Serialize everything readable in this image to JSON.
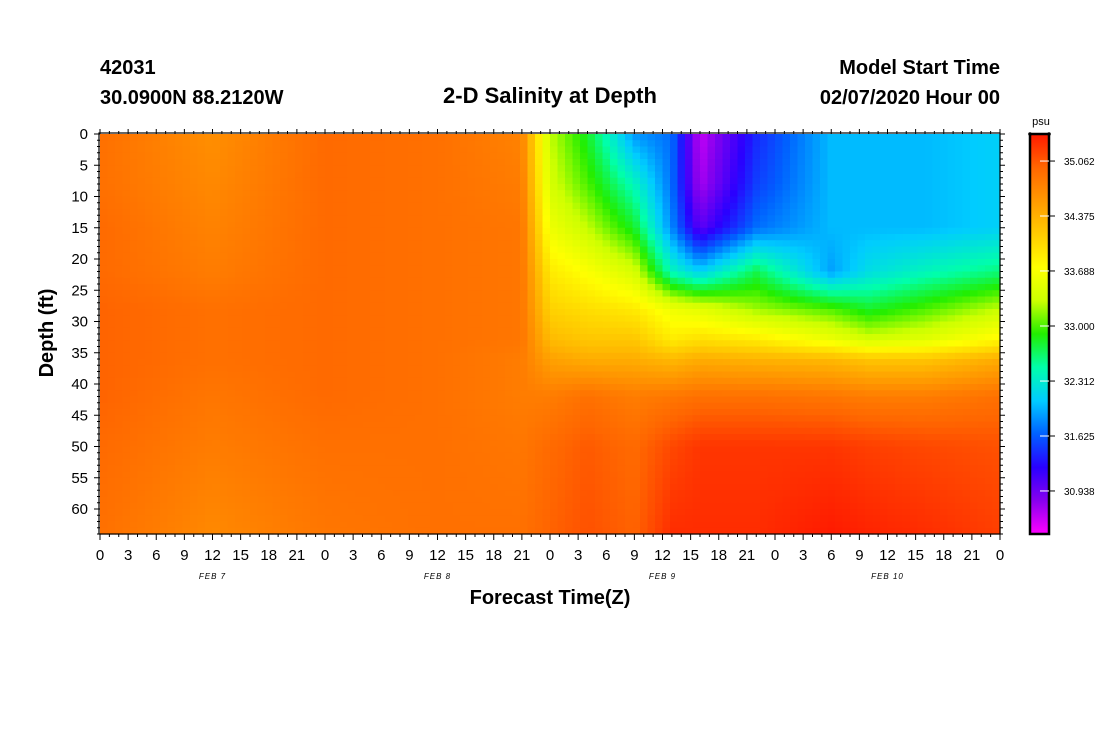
{
  "header": {
    "station_id": "42031",
    "coords": "30.0900N 88.2120W",
    "title": "2-D Salinity at Depth",
    "start_label": "Model Start Time",
    "start_value": "02/07/2020 Hour 00"
  },
  "chart_data": {
    "type": "heatmap",
    "title": "2-D Salinity at Depth",
    "xlabel": "Forecast Time(Z)",
    "ylabel": "Depth (ft)",
    "x_tick_labels": [
      "0",
      "3",
      "6",
      "9",
      "12",
      "15",
      "18",
      "21",
      "0",
      "3",
      "6",
      "9",
      "12",
      "15",
      "18",
      "21",
      "0",
      "3",
      "6",
      "9",
      "12",
      "15",
      "18",
      "21",
      "0",
      "3",
      "6",
      "9",
      "12",
      "15",
      "18",
      "21",
      "0"
    ],
    "date_labels": [
      {
        "label": "FEB 7",
        "hour": 12
      },
      {
        "label": "FEB 8",
        "hour": 36
      },
      {
        "label": "FEB 9",
        "hour": 60
      },
      {
        "label": "FEB 10",
        "hour": 84
      }
    ],
    "xlim_hours": [
      0,
      96
    ],
    "ylim_ft": [
      0,
      64
    ],
    "y_inverted": true,
    "y_tick_labels": [
      "0",
      "5",
      "10",
      "15",
      "20",
      "25",
      "30",
      "35",
      "40",
      "45",
      "50",
      "55",
      "60"
    ],
    "colorbar": {
      "unit": "psu",
      "min": 30.4,
      "max": 35.4,
      "tick_labels": [
        "35.062",
        "34.375",
        "33.688",
        "33.000",
        "32.312",
        "31.625",
        "30.938"
      ],
      "tick_values": [
        35.062,
        34.375,
        33.688,
        33.0,
        32.312,
        31.625,
        30.938
      ],
      "colors": [
        "#ff00ff",
        "#8800ee",
        "#2a00ff",
        "#0060ff",
        "#00ccff",
        "#00ffaa",
        "#22ee00",
        "#ccff00",
        "#ffff00",
        "#ffcc00",
        "#ff9900",
        "#ff6600",
        "#ff1a00"
      ]
    },
    "grid": false,
    "legend": "colorbar-right",
    "hours": [
      0,
      12,
      24,
      36,
      45,
      48,
      52,
      57,
      61,
      64,
      70,
      78,
      82,
      88,
      96
    ],
    "depths_ft": [
      0,
      8,
      15,
      22,
      28,
      33,
      36,
      42,
      50,
      64
    ],
    "salinity_psu": [
      [
        34.9,
        34.65,
        34.95,
        34.9,
        34.75,
        33.3,
        32.8,
        31.85,
        31.7,
        30.6,
        31.4,
        32.0,
        32.0,
        32.0,
        32.1
      ],
      [
        34.9,
        34.7,
        34.95,
        34.9,
        34.8,
        33.4,
        33.0,
        32.4,
        31.7,
        30.7,
        31.5,
        32.0,
        32.0,
        32.0,
        32.1
      ],
      [
        34.95,
        34.75,
        34.95,
        34.9,
        34.85,
        33.6,
        33.3,
        32.8,
        31.8,
        31.0,
        31.7,
        32.0,
        32.0,
        32.0,
        32.1
      ],
      [
        34.95,
        34.8,
        34.95,
        34.9,
        34.85,
        33.9,
        33.7,
        33.4,
        32.4,
        32.1,
        32.7,
        31.9,
        32.2,
        32.4,
        32.6
      ],
      [
        35.0,
        34.9,
        34.95,
        34.9,
        34.85,
        34.1,
        34.0,
        33.9,
        33.6,
        33.5,
        33.2,
        33.0,
        32.8,
        33.0,
        33.3
      ],
      [
        35.0,
        34.9,
        34.95,
        34.9,
        34.85,
        34.3,
        34.2,
        34.2,
        33.9,
        34.0,
        33.9,
        33.6,
        33.4,
        33.5,
        33.8
      ],
      [
        35.0,
        34.9,
        34.95,
        34.9,
        34.8,
        34.5,
        34.4,
        34.4,
        34.3,
        34.4,
        34.35,
        34.3,
        34.2,
        34.2,
        34.4
      ],
      [
        35.0,
        34.85,
        34.95,
        34.9,
        34.8,
        34.8,
        34.9,
        34.8,
        34.85,
        34.9,
        34.9,
        34.85,
        34.8,
        34.8,
        34.9
      ],
      [
        34.95,
        34.8,
        34.9,
        34.9,
        34.85,
        34.95,
        35.05,
        34.95,
        35.15,
        35.25,
        35.25,
        35.25,
        35.2,
        35.15,
        35.1
      ],
      [
        34.9,
        34.7,
        34.85,
        34.9,
        34.9,
        35.0,
        35.1,
        35.0,
        35.3,
        35.3,
        35.3,
        35.4,
        35.35,
        35.3,
        35.2
      ]
    ]
  }
}
